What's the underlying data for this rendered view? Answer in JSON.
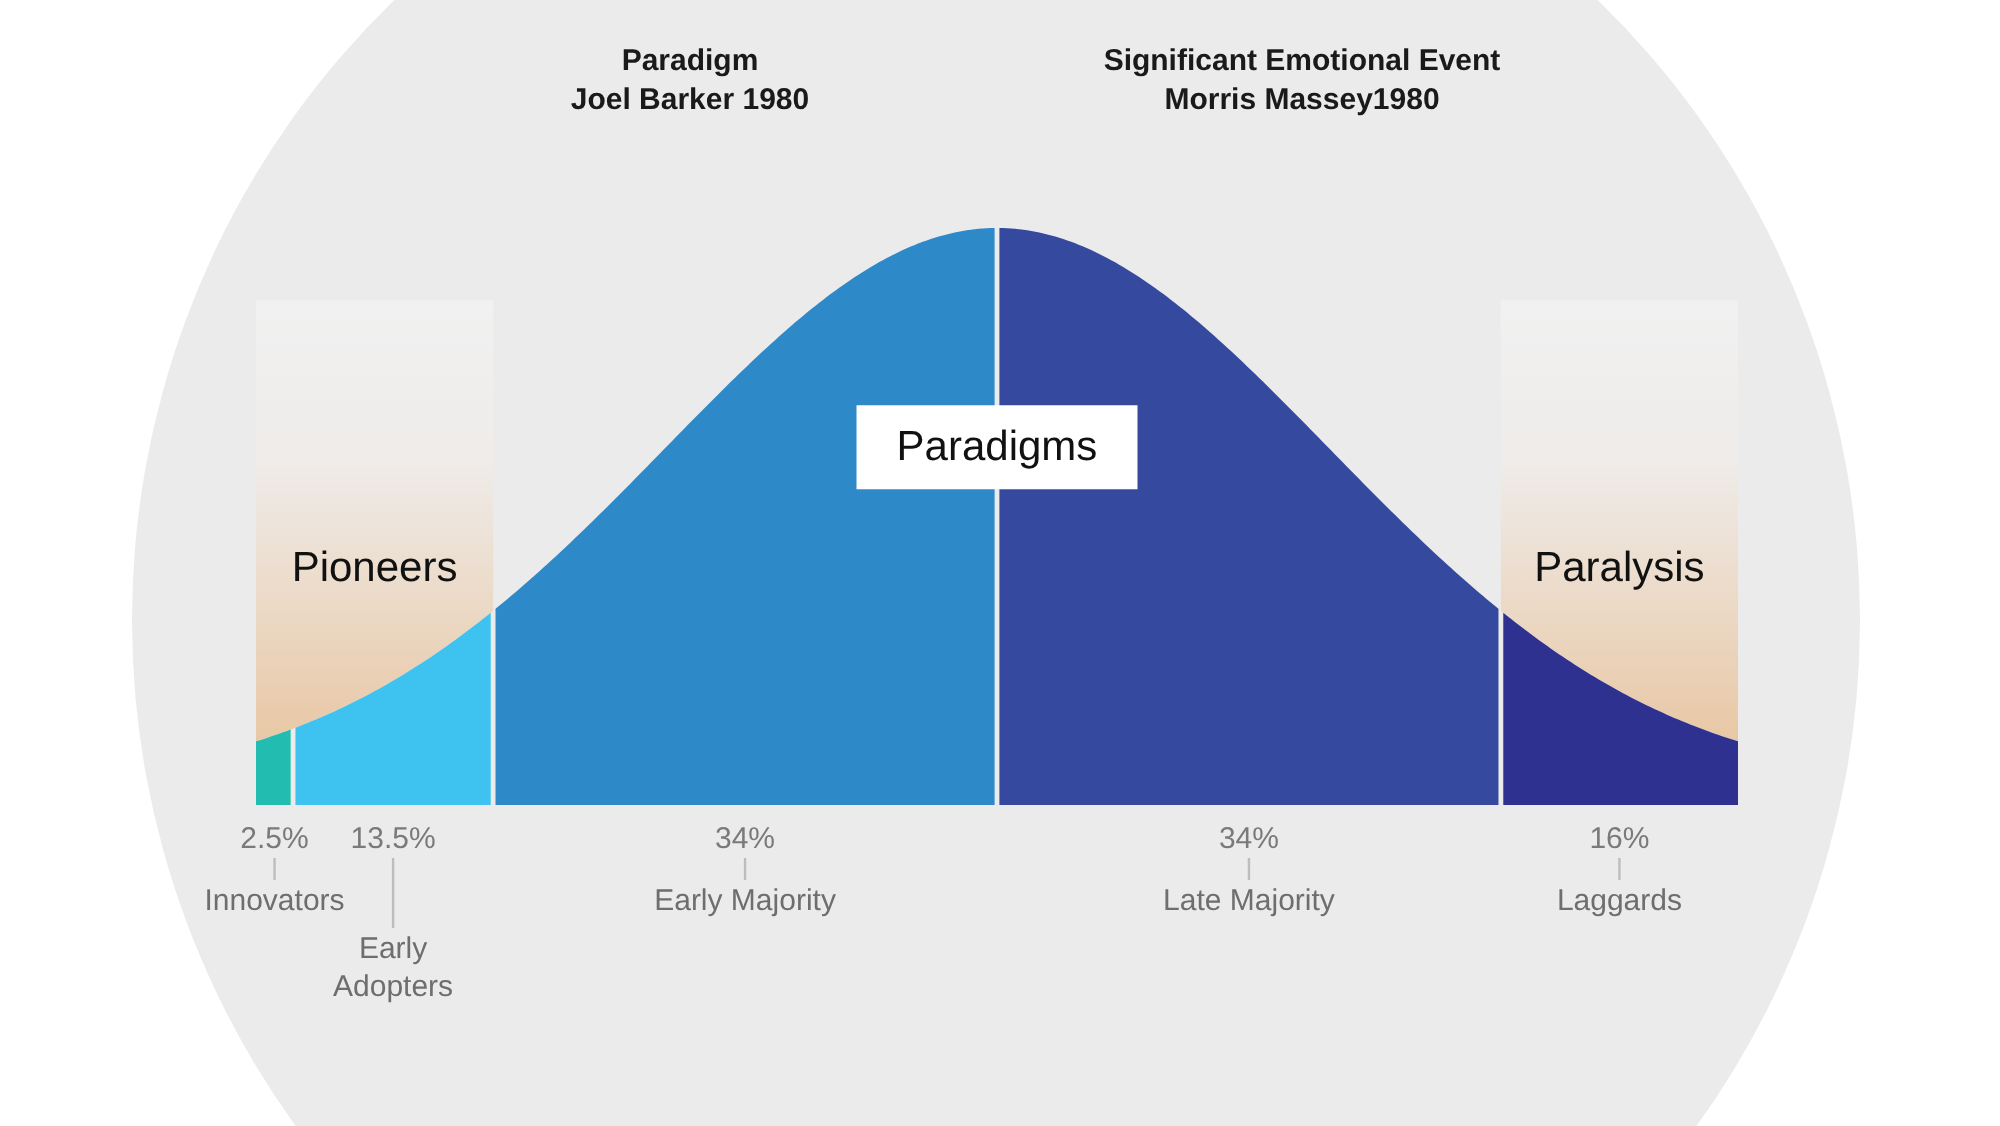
{
  "chart_data": {
    "type": "other",
    "annotations": [
      "Paradigm\nJoel Barker 1980",
      "Significant Emotional Event\nMorris Massey1980",
      "Pioneers",
      "Paradigms",
      "Paralysis"
    ],
    "categories": [
      "Innovators",
      "Early Adopters",
      "Early Majority",
      "Late Majority",
      "Laggards"
    ],
    "values": [
      2.5,
      13.5,
      34,
      34,
      16
    ],
    "colors": [
      "#22bdb0",
      "#3ec3f0",
      "#2d89c8",
      "#354a9e",
      "#2e3190"
    ],
    "value_labels": [
      "2.5%",
      "13.5%",
      "34%",
      "34%",
      "16%"
    ]
  }
}
